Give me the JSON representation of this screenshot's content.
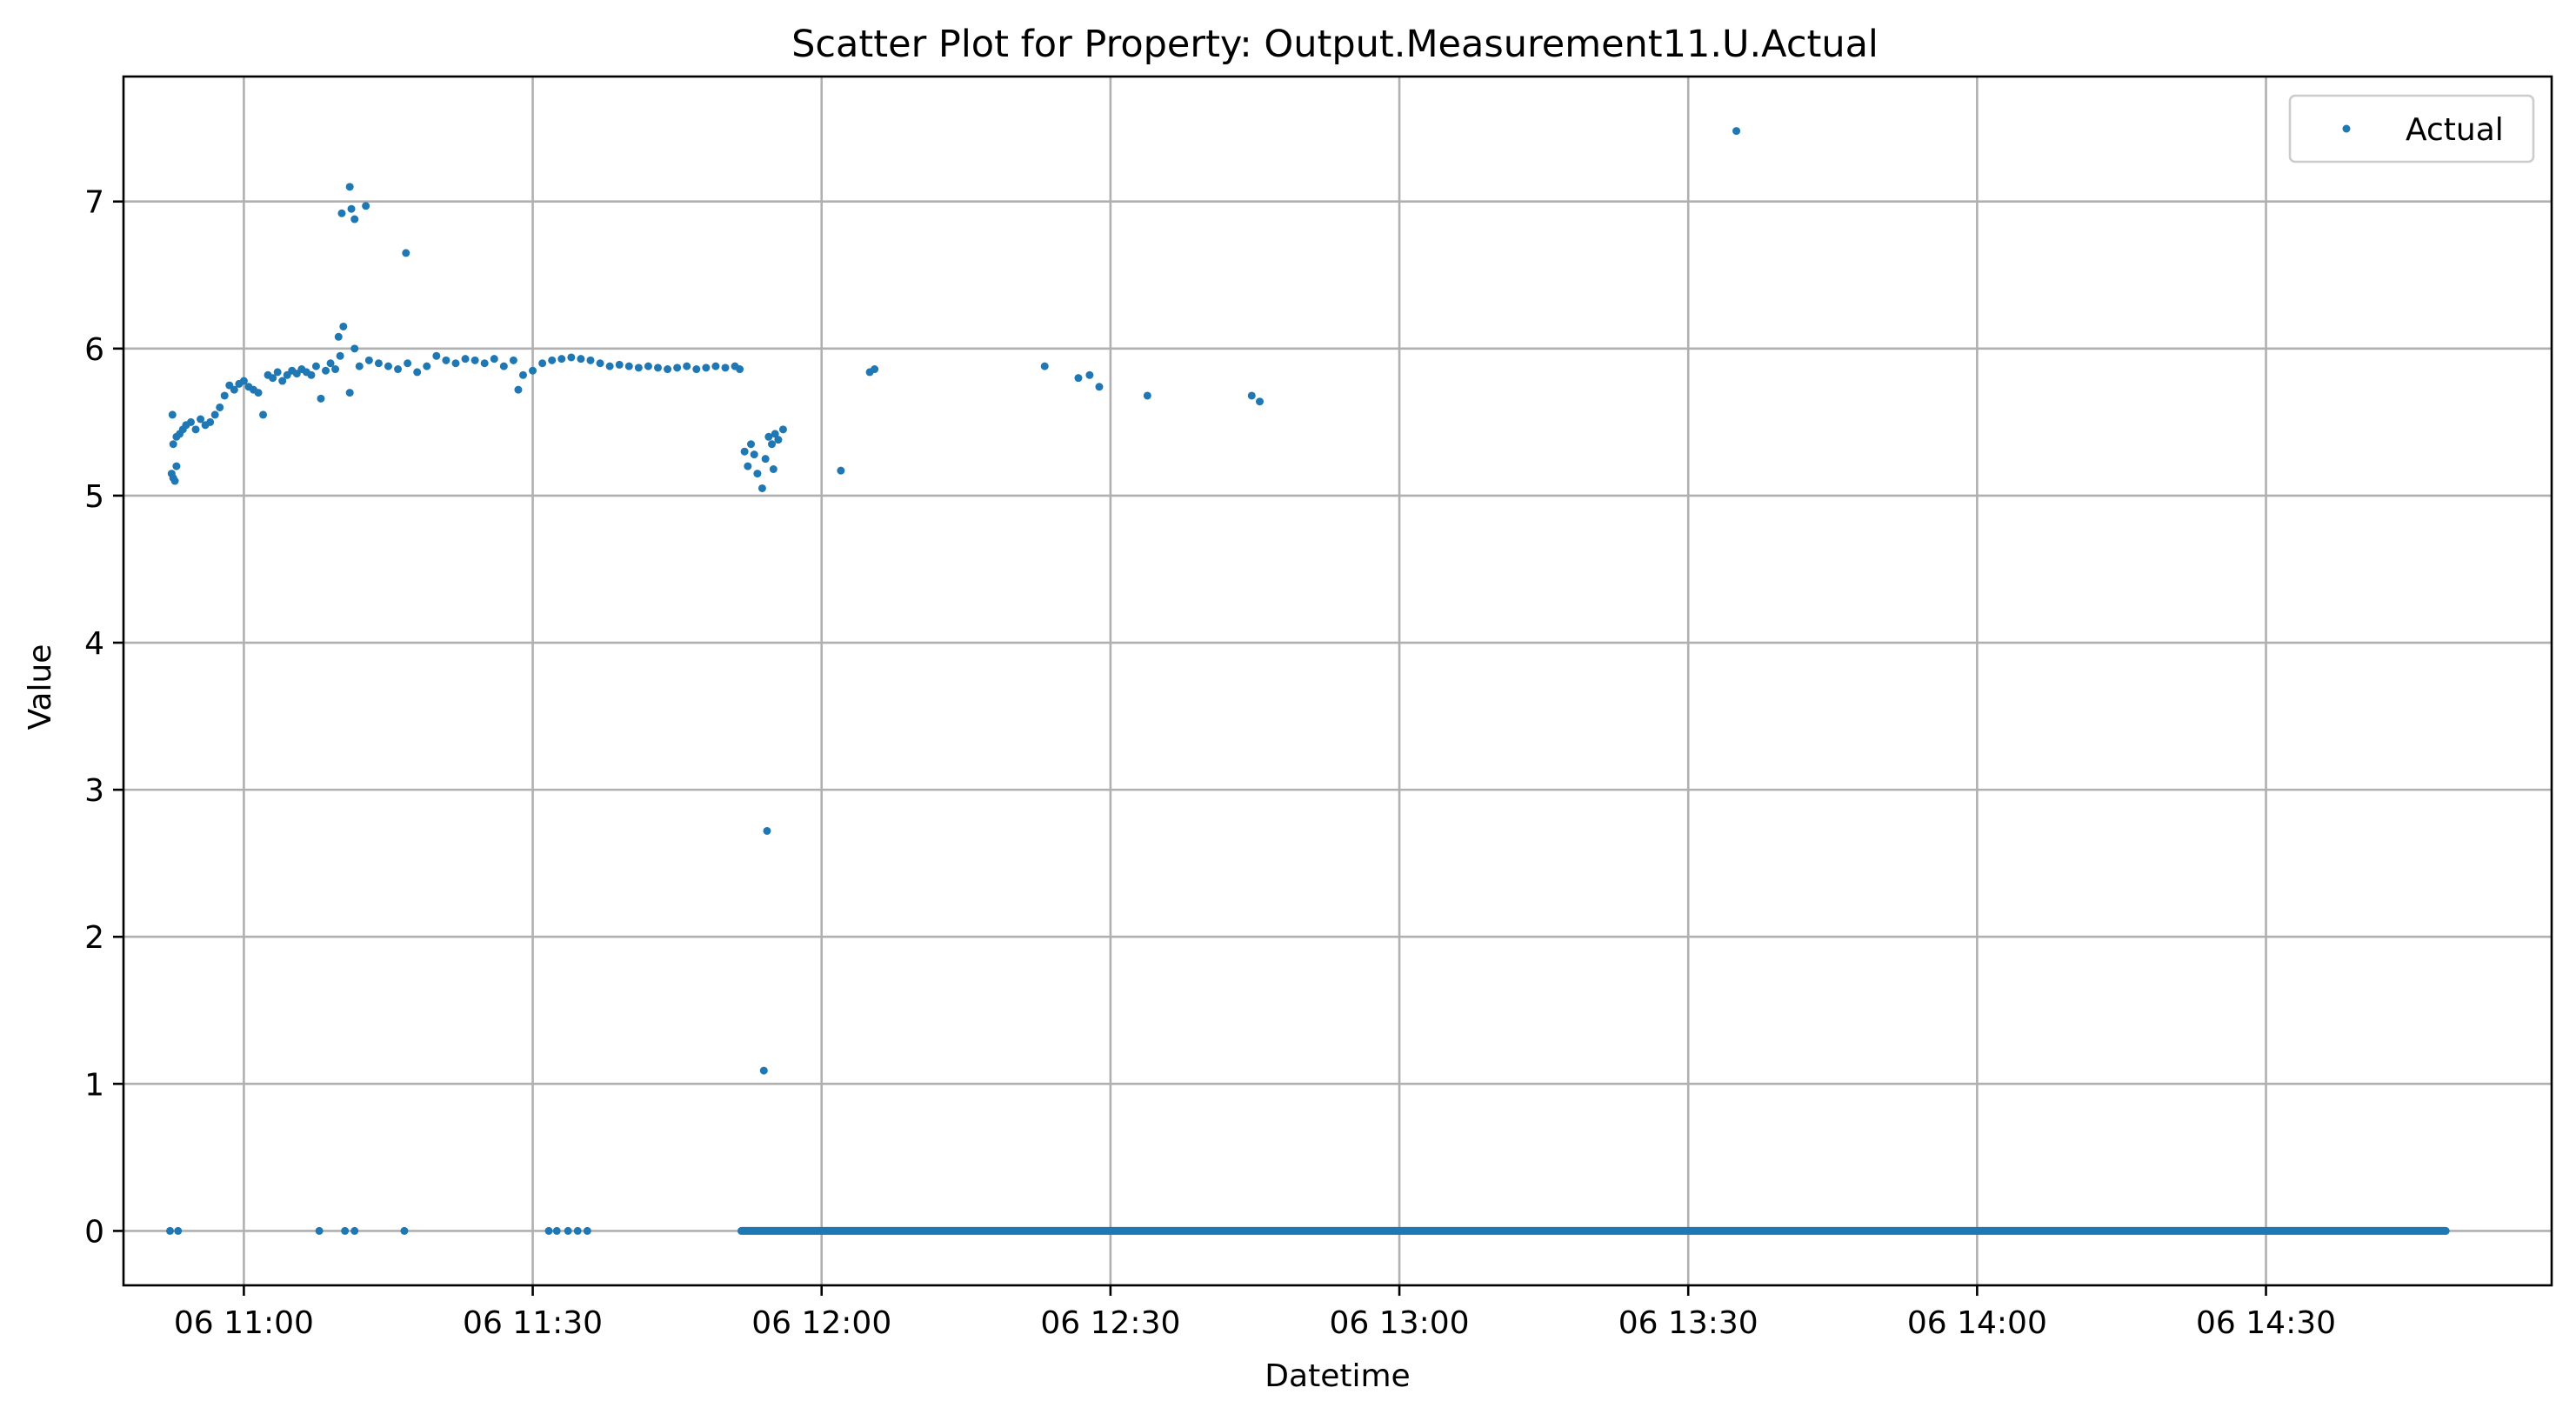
{
  "chart_data": {
    "type": "scatter",
    "title": "Scatter Plot for Property: Output.Measurement11.U.Actual",
    "xlabel": "Datetime",
    "ylabel": "Value",
    "x_ticks": [
      "06 11:00",
      "06 11:30",
      "06 12:00",
      "06 12:30",
      "06 13:00",
      "06 13:30",
      "06 14:00",
      "06 14:30"
    ],
    "x_tick_times": [
      "11:00",
      "11:30",
      "12:00",
      "12:30",
      "13:00",
      "13:30",
      "14:00",
      "14:30"
    ],
    "y_ticks": [
      0,
      1,
      2,
      3,
      4,
      5,
      6,
      7
    ],
    "xlim": [
      "10:47:30",
      "14:59:40"
    ],
    "ylim": [
      -0.37,
      7.85
    ],
    "grid": true,
    "legend_position": "upper right",
    "marker_color": "#1f77b4",
    "series": [
      {
        "name": "Actual",
        "points": [
          [
            "10:52:30",
            5.15
          ],
          [
            "10:52:40",
            5.12
          ],
          [
            "10:52:50",
            5.1
          ],
          [
            "10:53:00",
            5.2
          ],
          [
            "10:52:35",
            5.55
          ],
          [
            "10:52:40",
            5.35
          ],
          [
            "10:53:00",
            5.4
          ],
          [
            "10:53:20",
            5.42
          ],
          [
            "10:53:40",
            5.45
          ],
          [
            "10:54:00",
            5.48
          ],
          [
            "10:54:30",
            5.5
          ],
          [
            "10:55:00",
            5.45
          ],
          [
            "10:55:30",
            5.52
          ],
          [
            "10:56:00",
            5.48
          ],
          [
            "10:56:30",
            5.5
          ],
          [
            "10:57:00",
            5.55
          ],
          [
            "10:57:30",
            5.6
          ],
          [
            "10:58:00",
            5.68
          ],
          [
            "10:58:30",
            5.75
          ],
          [
            "10:59:00",
            5.72
          ],
          [
            "10:59:30",
            5.76
          ],
          [
            "11:00:00",
            5.78
          ],
          [
            "11:00:30",
            5.74
          ],
          [
            "11:01:00",
            5.72
          ],
          [
            "11:01:30",
            5.7
          ],
          [
            "11:02:00",
            5.55
          ],
          [
            "11:02:30",
            5.82
          ],
          [
            "11:03:00",
            5.8
          ],
          [
            "11:03:30",
            5.84
          ],
          [
            "11:04:00",
            5.78
          ],
          [
            "11:04:30",
            5.82
          ],
          [
            "11:05:00",
            5.85
          ],
          [
            "11:05:30",
            5.83
          ],
          [
            "11:06:00",
            5.86
          ],
          [
            "11:06:30",
            5.84
          ],
          [
            "11:07:00",
            5.82
          ],
          [
            "11:07:30",
            5.88
          ],
          [
            "11:08:00",
            5.66
          ],
          [
            "11:08:30",
            5.85
          ],
          [
            "11:09:00",
            5.9
          ],
          [
            "11:09:30",
            5.86
          ],
          [
            "11:10:00",
            5.95
          ],
          [
            "11:10:20",
            6.15
          ],
          [
            "11:09:50",
            6.08
          ],
          [
            "11:10:10",
            6.92
          ],
          [
            "11:11:00",
            7.1
          ],
          [
            "11:11:10",
            6.95
          ],
          [
            "11:11:30",
            6.88
          ],
          [
            "11:12:40",
            6.97
          ],
          [
            "11:16:50",
            6.65
          ],
          [
            "11:11:00",
            5.7
          ],
          [
            "11:11:30",
            6.0
          ],
          [
            "11:12:00",
            5.88
          ],
          [
            "11:13:00",
            5.92
          ],
          [
            "11:14:00",
            5.9
          ],
          [
            "11:15:00",
            5.88
          ],
          [
            "11:16:00",
            5.86
          ],
          [
            "11:17:00",
            5.9
          ],
          [
            "11:18:00",
            5.84
          ],
          [
            "11:19:00",
            5.88
          ],
          [
            "11:20:00",
            5.95
          ],
          [
            "11:21:00",
            5.92
          ],
          [
            "11:22:00",
            5.9
          ],
          [
            "11:23:00",
            5.93
          ],
          [
            "11:24:00",
            5.92
          ],
          [
            "11:25:00",
            5.9
          ],
          [
            "11:26:00",
            5.93
          ],
          [
            "11:27:00",
            5.88
          ],
          [
            "11:28:00",
            5.92
          ],
          [
            "11:28:30",
            5.72
          ],
          [
            "11:29:00",
            5.82
          ],
          [
            "11:30:00",
            5.85
          ],
          [
            "11:31:00",
            5.9
          ],
          [
            "11:32:00",
            5.92
          ],
          [
            "11:33:00",
            5.93
          ],
          [
            "11:34:00",
            5.94
          ],
          [
            "11:35:00",
            5.93
          ],
          [
            "11:36:00",
            5.92
          ],
          [
            "11:37:00",
            5.9
          ],
          [
            "11:38:00",
            5.88
          ],
          [
            "11:39:00",
            5.89
          ],
          [
            "11:40:00",
            5.88
          ],
          [
            "11:41:00",
            5.87
          ],
          [
            "11:42:00",
            5.88
          ],
          [
            "11:43:00",
            5.87
          ],
          [
            "11:44:00",
            5.86
          ],
          [
            "11:45:00",
            5.87
          ],
          [
            "11:46:00",
            5.88
          ],
          [
            "11:47:00",
            5.86
          ],
          [
            "11:48:00",
            5.87
          ],
          [
            "11:49:00",
            5.88
          ],
          [
            "11:50:00",
            5.87
          ],
          [
            "11:51:00",
            5.88
          ],
          [
            "11:51:30",
            5.86
          ],
          [
            "11:52:00",
            5.3
          ],
          [
            "11:52:20",
            5.2
          ],
          [
            "11:52:40",
            5.35
          ],
          [
            "11:53:00",
            5.28
          ],
          [
            "11:53:20",
            5.15
          ],
          [
            "11:53:50",
            5.05
          ],
          [
            "11:54:10",
            5.25
          ],
          [
            "11:54:30",
            5.4
          ],
          [
            "11:54:50",
            5.35
          ],
          [
            "11:55:10",
            5.42
          ],
          [
            "11:55:30",
            5.38
          ],
          [
            "11:56:00",
            5.45
          ],
          [
            "11:55:00",
            5.18
          ],
          [
            "11:54:20",
            2.72
          ],
          [
            "11:54:00",
            1.09
          ],
          [
            "12:02:00",
            5.17
          ],
          [
            "12:05:00",
            5.84
          ],
          [
            "12:05:30",
            5.86
          ],
          [
            "12:23:10",
            5.88
          ],
          [
            "12:26:40",
            5.8
          ],
          [
            "12:27:50",
            5.82
          ],
          [
            "12:28:50",
            5.74
          ],
          [
            "12:33:50",
            5.68
          ],
          [
            "12:44:40",
            5.68
          ],
          [
            "12:45:30",
            5.64
          ],
          [
            "13:35:00",
            7.48
          ],
          [
            "10:52:20",
            0
          ],
          [
            "10:53:10",
            0
          ],
          [
            "11:07:50",
            0
          ],
          [
            "11:10:30",
            0
          ],
          [
            "11:11:30",
            0
          ],
          [
            "11:16:40",
            0
          ],
          [
            "11:31:40",
            0
          ],
          [
            "11:32:30",
            0
          ],
          [
            "11:33:40",
            0
          ],
          [
            "11:34:40",
            0
          ],
          [
            "11:35:40",
            0
          ]
        ],
        "zero_run": {
          "from": "11:51:40",
          "to": "14:48:40",
          "value": 0
        }
      }
    ]
  }
}
